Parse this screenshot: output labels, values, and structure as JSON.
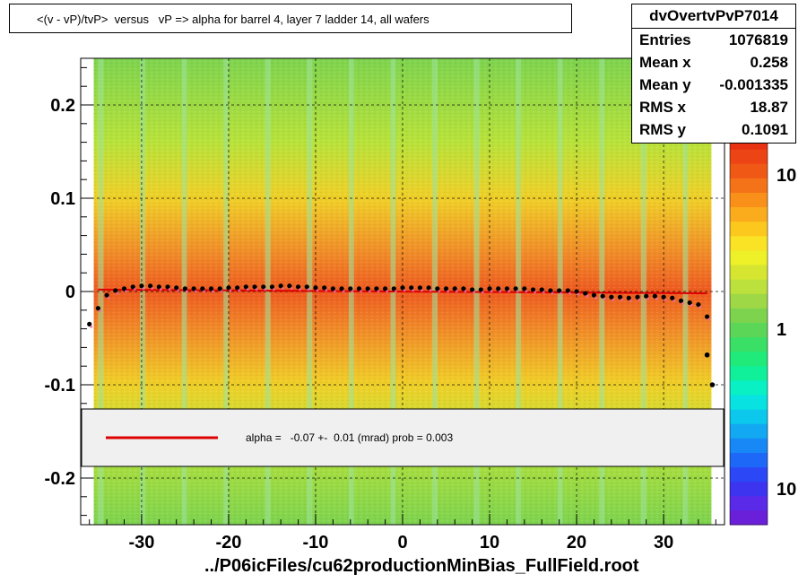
{
  "chart_data": {
    "type": "heatmap",
    "title": "<(v - vP)/tvP>  versus   vP => alpha for barrel 4, layer 7 ladder 14, all wafers",
    "xlabel": "../P06icFiles/cu62productionMinBias_FullField.root",
    "ylabel": "",
    "xlim": [
      -37,
      37
    ],
    "ylim": [
      -0.25,
      0.25
    ],
    "x_ticks": [
      -30,
      -20,
      -10,
      0,
      10,
      20,
      30
    ],
    "x_tick_labels": [
      "-30",
      "-20",
      "-10",
      "0",
      "10",
      "20",
      "30"
    ],
    "y_ticks": [
      -0.2,
      -0.1,
      0,
      0.1,
      0.2
    ],
    "y_tick_labels": [
      "-0.2",
      "-0.1",
      "0",
      "0.1",
      "0.2"
    ],
    "grid": true,
    "stats": {
      "name": "dvOvertvPvP7014",
      "rows": [
        {
          "label": "Entries",
          "value": "1076819"
        },
        {
          "label": "Mean x",
          "value": "0.258"
        },
        {
          "label": "Mean y",
          "value": "-0.001335"
        },
        {
          "label": "RMS x",
          "value": "18.87"
        },
        {
          "label": "RMS y",
          "value": "0.1091"
        }
      ]
    },
    "fit_legend": "alpha =   -0.07 +-  0.01 (mrad) prob = 0.003",
    "fit_line": {
      "x": [
        -35,
        35
      ],
      "y": [
        0.002,
        -0.002
      ],
      "color": "#dd0000"
    },
    "palette_labels": [
      "10",
      "1",
      "10"
    ],
    "profile_points": {
      "x": [
        -36,
        -35,
        -34,
        -33,
        -32,
        -31,
        -30,
        -29,
        -28,
        -27,
        -26,
        -25,
        -24,
        -23,
        -22,
        -21,
        -20,
        -19,
        -18,
        -17,
        -16,
        -15,
        -14,
        -13,
        -12,
        -11,
        -10,
        -9,
        -8,
        -7,
        -6,
        -5,
        -4,
        -3,
        -2,
        -1,
        0,
        1,
        2,
        3,
        4,
        5,
        6,
        7,
        8,
        9,
        10,
        11,
        12,
        13,
        14,
        15,
        16,
        17,
        18,
        19,
        20,
        21,
        22,
        23,
        24,
        25,
        26,
        27,
        28,
        29,
        30,
        31,
        32,
        33,
        34,
        35
      ],
      "y": [
        -0.035,
        -0.018,
        -0.004,
        0.001,
        0.003,
        0.005,
        0.006,
        0.006,
        0.005,
        0.005,
        0.004,
        0.003,
        0.003,
        0.003,
        0.003,
        0.003,
        0.004,
        0.004,
        0.005,
        0.005,
        0.005,
        0.005,
        0.006,
        0.006,
        0.005,
        0.005,
        0.004,
        0.004,
        0.003,
        0.003,
        0.003,
        0.003,
        0.003,
        0.003,
        0.003,
        0.003,
        0.004,
        0.004,
        0.004,
        0.004,
        0.003,
        0.003,
        0.003,
        0.003,
        0.002,
        0.002,
        0.003,
        0.003,
        0.003,
        0.003,
        0.003,
        0.002,
        0.002,
        0.001,
        0.001,
        0.001,
        0.0,
        -0.002,
        -0.004,
        -0.005,
        -0.006,
        -0.006,
        -0.007,
        -0.006,
        -0.005,
        -0.005,
        -0.006,
        -0.007,
        -0.01,
        -0.012,
        -0.014,
        -0.027
      ],
      "tail_x": [
        35,
        35.6
      ],
      "tail_y": [
        -0.068,
        -0.1
      ]
    },
    "colors": {
      "background": "#7ed37e",
      "fit": "#dd0000",
      "legend_fill": "#f0f0f0",
      "points": "#000000"
    }
  }
}
